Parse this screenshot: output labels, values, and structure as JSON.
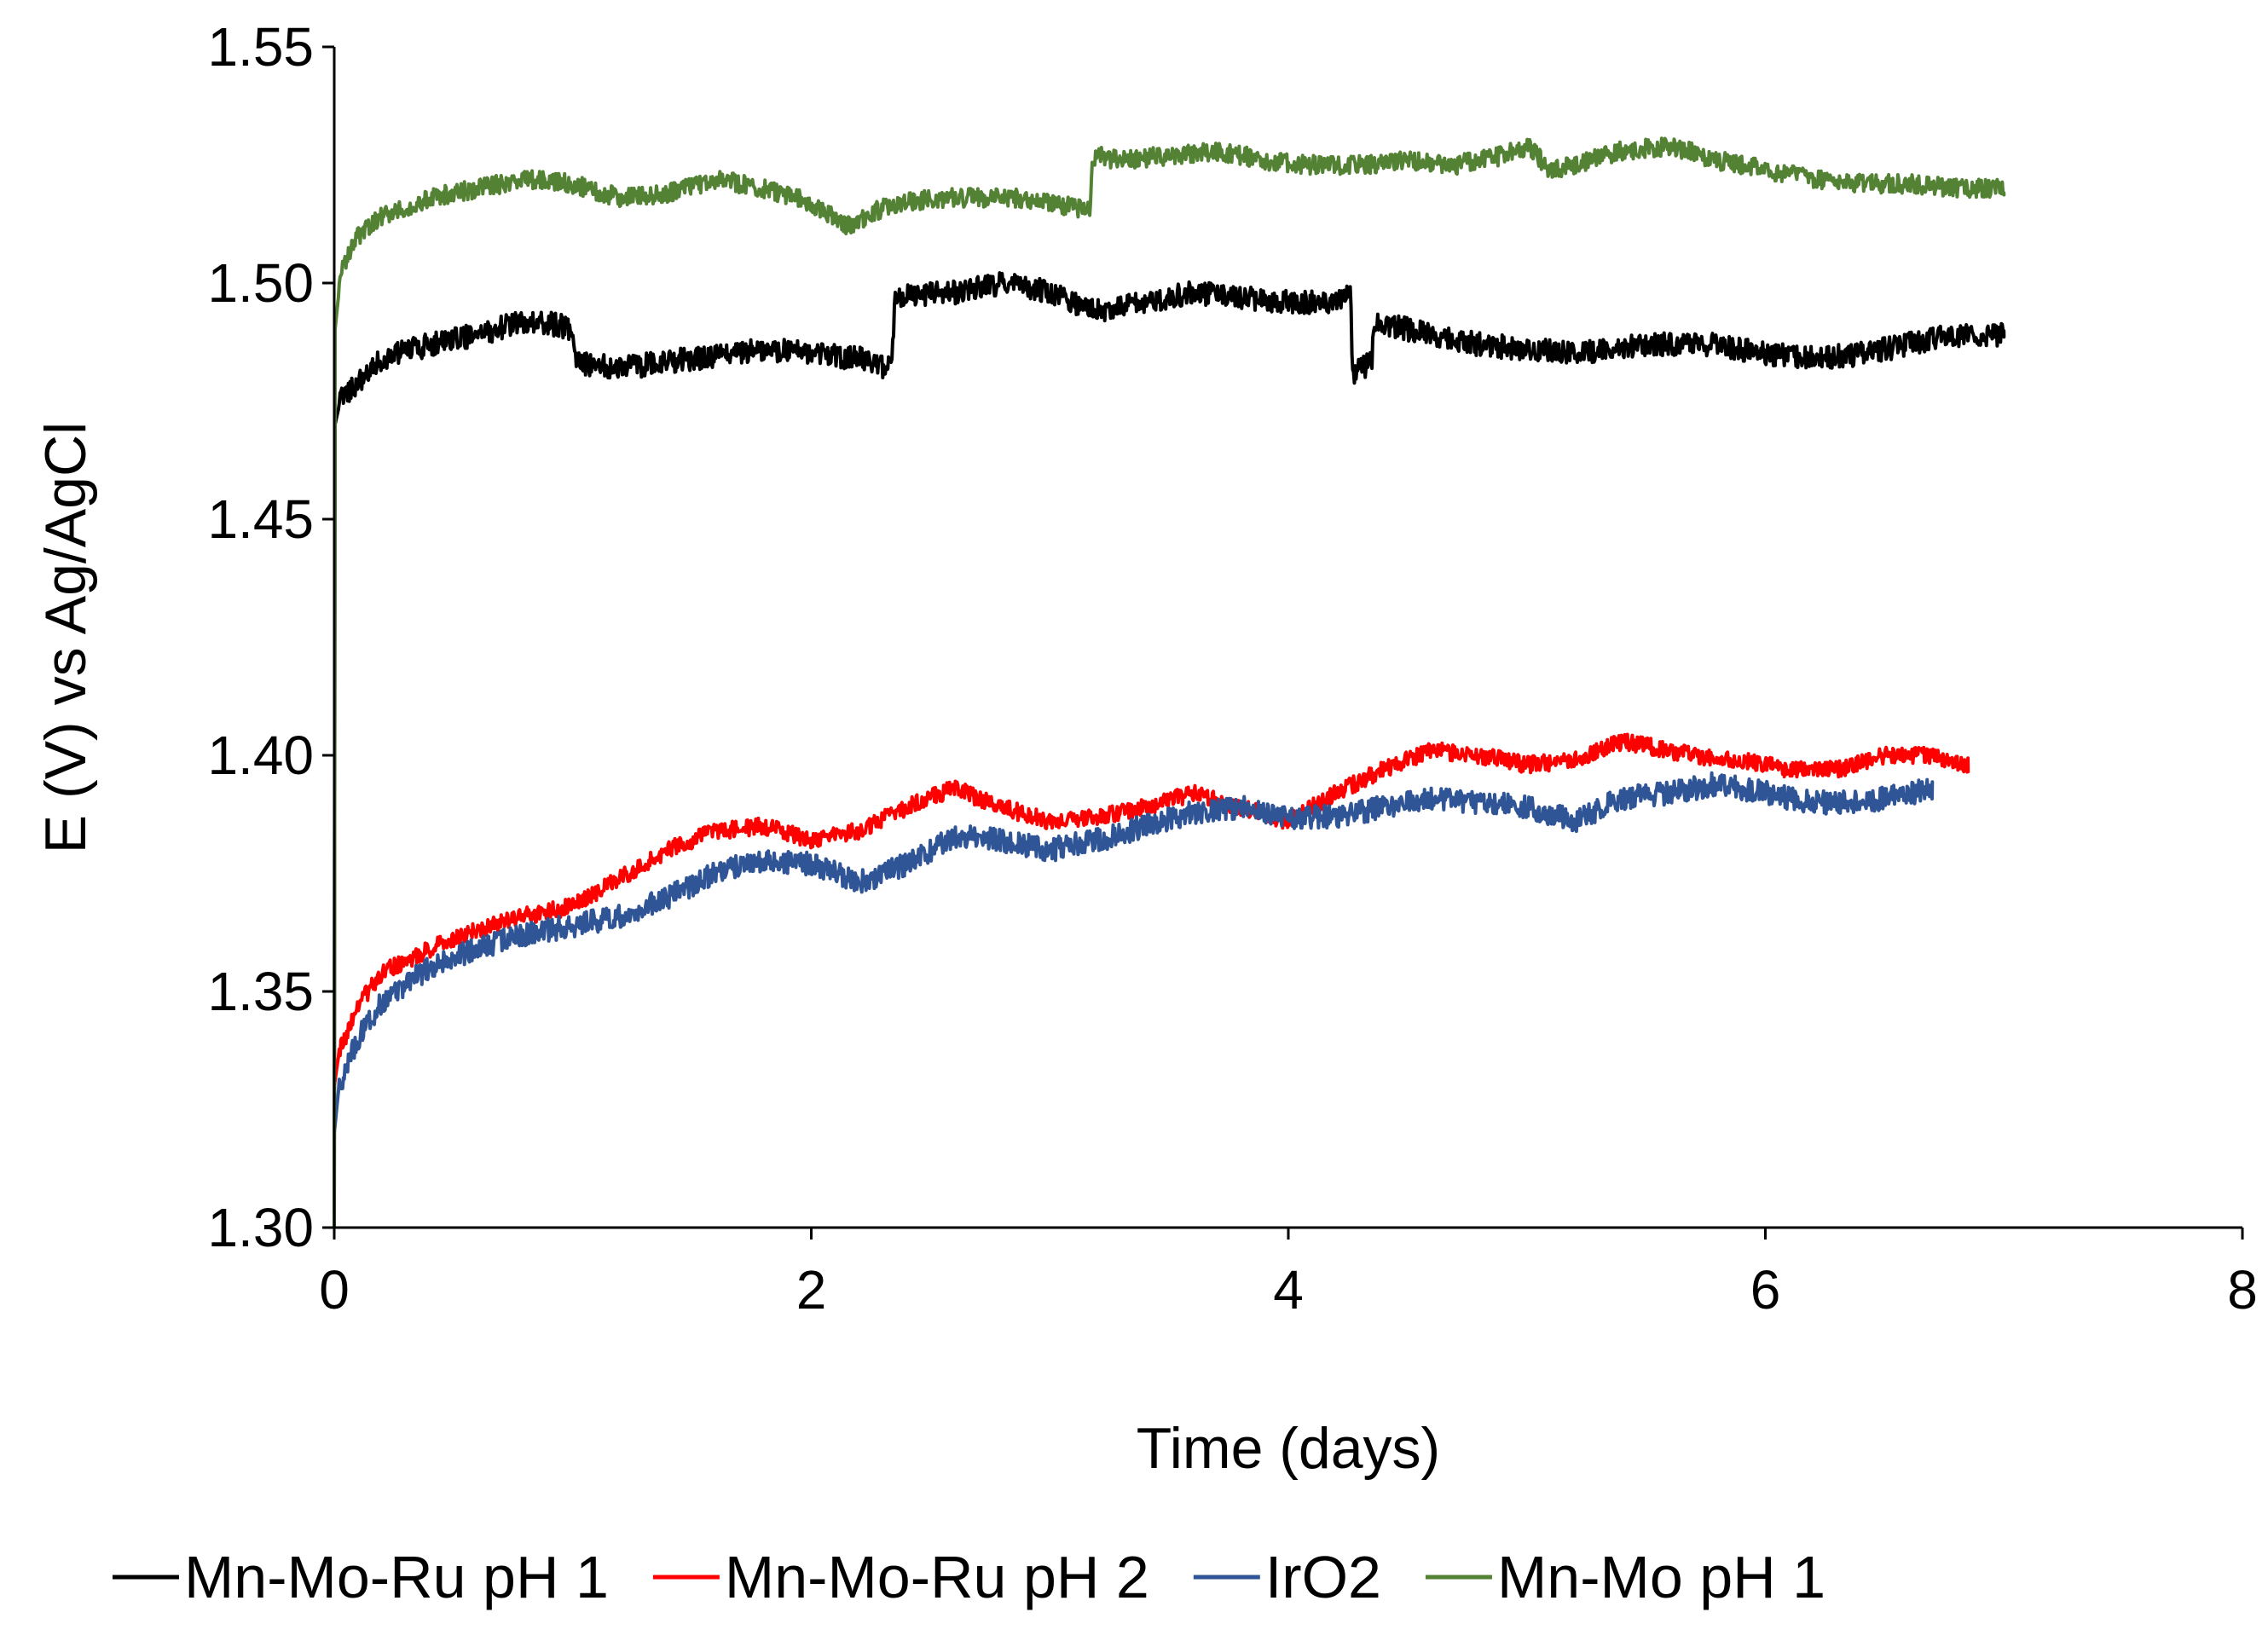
{
  "chart_data": {
    "type": "line",
    "title": "",
    "xlabel": "Time (days)",
    "ylabel": "E (V) vs Ag/AgCl",
    "xlim": [
      0,
      8
    ],
    "ylim": [
      1.3,
      1.55
    ],
    "xticks": [
      0,
      2,
      4,
      6,
      8
    ],
    "xtick_labels": [
      "0",
      "2",
      "4",
      "6",
      "8"
    ],
    "yticks": [
      1.3,
      1.35,
      1.4,
      1.45,
      1.5,
      1.55
    ],
    "ytick_labels": [
      "1.30",
      "1.35",
      "1.40",
      "1.45",
      "1.50",
      "1.55"
    ],
    "grid": false,
    "legend_position": "bottom",
    "series": [
      {
        "name": "Mn-Mo-Ru pH 1",
        "color": "#000000",
        "noise": 0.0025,
        "x": [
          0,
          0.003,
          0.03,
          0.1,
          0.2,
          0.4,
          0.6,
          0.8,
          0.95,
          1.0,
          1.01,
          1.2,
          1.5,
          1.8,
          2.0,
          2.2,
          2.3,
          2.34,
          2.35,
          2.6,
          2.8,
          3.0,
          3.2,
          3.4,
          3.6,
          3.8,
          4.0,
          4.2,
          4.26,
          4.27,
          4.35,
          4.36,
          4.6,
          4.8,
          5.0,
          5.2,
          5.5,
          5.8,
          6.0,
          6.2,
          6.4,
          6.6,
          6.8,
          7.0
        ],
        "y": [
          1.3,
          1.47,
          1.476,
          1.479,
          1.484,
          1.487,
          1.489,
          1.492,
          1.491,
          1.49,
          1.483,
          1.482,
          1.484,
          1.486,
          1.485,
          1.484,
          1.482,
          1.485,
          1.497,
          1.498,
          1.5,
          1.498,
          1.494,
          1.496,
          1.498,
          1.497,
          1.496,
          1.496,
          1.498,
          1.481,
          1.483,
          1.492,
          1.489,
          1.487,
          1.486,
          1.485,
          1.487,
          1.487,
          1.485,
          1.484,
          1.485,
          1.487,
          1.489,
          1.489
        ]
      },
      {
        "name": "Mn-Mo-Ru pH 2",
        "color": "#ff0000",
        "noise": 0.0018,
        "x": [
          0,
          0.02,
          0.1,
          0.2,
          0.4,
          0.6,
          0.8,
          1.0,
          1.2,
          1.4,
          1.6,
          1.8,
          2.0,
          2.2,
          2.4,
          2.6,
          2.8,
          3.0,
          3.2,
          3.4,
          3.6,
          3.8,
          4.0,
          4.2,
          4.4,
          4.6,
          4.8,
          5.0,
          5.2,
          5.4,
          5.5,
          5.7,
          5.9,
          6.1,
          6.3,
          6.5,
          6.7,
          6.85
        ],
        "y": [
          1.33,
          1.337,
          1.347,
          1.354,
          1.359,
          1.363,
          1.366,
          1.368,
          1.374,
          1.38,
          1.384,
          1.385,
          1.382,
          1.384,
          1.389,
          1.393,
          1.389,
          1.386,
          1.387,
          1.389,
          1.392,
          1.389,
          1.386,
          1.392,
          1.397,
          1.401,
          1.4,
          1.398,
          1.399,
          1.403,
          1.402,
          1.4,
          1.399,
          1.397,
          1.397,
          1.4,
          1.4,
          1.398
        ]
      },
      {
        "name": "IrO2",
        "color": "#2f5597",
        "noise": 0.0025,
        "x": [
          0,
          0.02,
          0.1,
          0.2,
          0.4,
          0.6,
          0.8,
          1.0,
          1.2,
          1.4,
          1.6,
          1.8,
          2.0,
          2.2,
          2.4,
          2.6,
          2.8,
          3.0,
          3.2,
          3.4,
          3.6,
          3.8,
          4.0,
          4.2,
          4.4,
          4.6,
          4.8,
          5.0,
          5.2,
          5.4,
          5.6,
          5.8,
          6.0,
          6.2,
          6.4,
          6.6,
          6.7
        ],
        "y": [
          1.32,
          1.33,
          1.34,
          1.348,
          1.355,
          1.359,
          1.362,
          1.364,
          1.366,
          1.37,
          1.375,
          1.378,
          1.377,
          1.373,
          1.377,
          1.383,
          1.382,
          1.38,
          1.382,
          1.385,
          1.388,
          1.389,
          1.387,
          1.387,
          1.389,
          1.391,
          1.39,
          1.389,
          1.386,
          1.391,
          1.392,
          1.394,
          1.392,
          1.39,
          1.39,
          1.392,
          1.393
        ]
      },
      {
        "name": "Mn-Mo pH 1",
        "color": "#548235",
        "noise": 0.002,
        "x": [
          0,
          0.003,
          0.03,
          0.1,
          0.2,
          0.4,
          0.6,
          0.8,
          1.0,
          1.2,
          1.4,
          1.6,
          1.8,
          2.0,
          2.15,
          2.3,
          2.5,
          2.7,
          2.9,
          3.1,
          3.17,
          3.18,
          3.3,
          3.5,
          3.7,
          3.9,
          4.1,
          4.3,
          4.5,
          4.7,
          4.9,
          5.0,
          5.1,
          5.2,
          5.4,
          5.6,
          5.8,
          6.0,
          6.2,
          6.4,
          6.6,
          6.8,
          7.0
        ],
        "y": [
          1.3,
          1.49,
          1.503,
          1.51,
          1.514,
          1.518,
          1.52,
          1.522,
          1.521,
          1.518,
          1.519,
          1.522,
          1.52,
          1.517,
          1.512,
          1.516,
          1.518,
          1.518,
          1.518,
          1.516,
          1.515,
          1.527,
          1.526,
          1.527,
          1.528,
          1.526,
          1.525,
          1.525,
          1.526,
          1.525,
          1.527,
          1.529,
          1.524,
          1.525,
          1.528,
          1.529,
          1.526,
          1.524,
          1.522,
          1.521,
          1.521,
          1.52,
          1.52
        ]
      }
    ]
  }
}
